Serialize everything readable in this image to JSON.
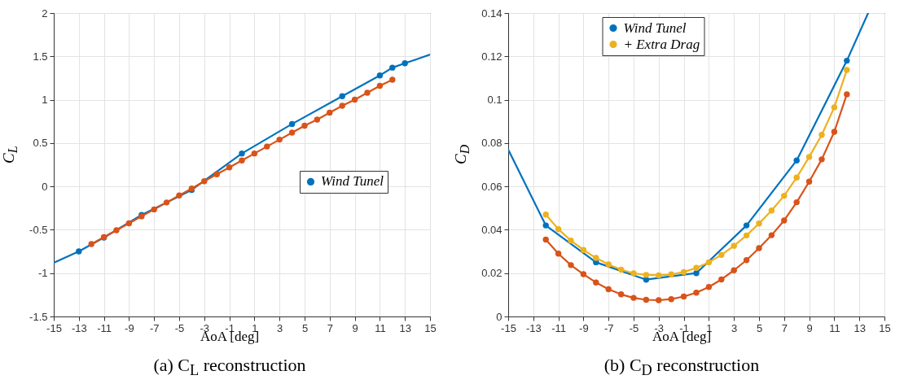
{
  "chart_data": [
    {
      "type": "line",
      "title": "(a) C$_{L}$ reconstruction",
      "xlabel": "AoA [deg]",
      "ylabel": "C$_{L}$",
      "xlim": [
        -15,
        15
      ],
      "xticks": [
        -15,
        -13,
        -11,
        -9,
        -7,
        -5,
        -3,
        -1,
        1,
        3,
        5,
        7,
        9,
        11,
        13,
        15
      ],
      "ylim": [
        -1.5,
        2
      ],
      "yticks": [
        -1.5,
        -1,
        -0.5,
        0,
        0.5,
        1,
        1.5,
        2
      ],
      "grid": true,
      "legend": "right",
      "marker": "circle",
      "line_style": "solid",
      "series": [
        {
          "name": "Wind Tunel",
          "color": "#0072bd",
          "x": [
            -13,
            -11,
            -8,
            -4,
            0,
            4,
            8,
            11,
            12,
            13
          ],
          "values": [
            -0.75,
            -0.59,
            -0.33,
            -0.04,
            0.38,
            0.72,
            1.04,
            1.28,
            1.37,
            1.42
          ]
        },
        {
          "color": "#d95319",
          "x": [
            -12,
            -11,
            -10,
            -9,
            -8,
            -7,
            -6,
            -5,
            -4,
            -3,
            -2,
            -1,
            0,
            1,
            2,
            3,
            4,
            5,
            6,
            7,
            8,
            9,
            10,
            11,
            12
          ],
          "values": [
            -0.665,
            -0.585,
            -0.505,
            -0.425,
            -0.345,
            -0.265,
            -0.185,
            -0.105,
            -0.025,
            0.06,
            0.14,
            0.22,
            0.3,
            0.38,
            0.46,
            0.54,
            0.62,
            0.7,
            0.77,
            0.85,
            0.93,
            1.0,
            1.08,
            1.16,
            1.23
          ]
        },
        {
          "type": "line",
          "marker": "none",
          "color": "#0072bd",
          "x": [
            -15,
            -13
          ],
          "values": [
            -0.88,
            -0.75
          ]
        },
        {
          "type": "line",
          "marker": "none",
          "color": "#0072bd",
          "x": [
            13,
            14,
            15
          ],
          "values": [
            1.42,
            1.47,
            1.52
          ]
        }
      ]
    },
    {
      "type": "line",
      "title": "(b) C$_{D}$ reconstruction",
      "xlabel": "AoA [deg]",
      "ylabel": "C$_{D}$",
      "xlim": [
        -15,
        15
      ],
      "xticks": [
        -15,
        -13,
        -11,
        -9,
        -7,
        -5,
        -3,
        -1,
        1,
        3,
        5,
        7,
        9,
        11,
        13,
        15
      ],
      "ylim": [
        0,
        0.14
      ],
      "yticks": [
        0,
        0.02,
        0.04,
        0.06,
        0.08,
        0.1,
        0.12,
        0.14
      ],
      "grid": true,
      "legend": "top",
      "marker": "circle",
      "line_style": "solid",
      "series": [
        {
          "name": "Wind Tunel",
          "color": "#0072bd",
          "x": [
            -12,
            -8,
            -4,
            0,
            4,
            8,
            12
          ],
          "values": [
            0.042,
            0.025,
            0.017,
            0.02,
            0.042,
            0.072,
            0.118
          ]
        },
        {
          "color": "#d95319",
          "x": [
            -12,
            -11,
            -10,
            -9,
            -8,
            -7,
            -6,
            -5,
            -4,
            -3,
            -2,
            -1,
            0,
            1,
            2,
            3,
            4,
            5,
            6,
            7,
            8,
            9,
            10,
            11,
            12
          ],
          "values": [
            0.0355,
            0.029,
            0.0237,
            0.0195,
            0.0157,
            0.0126,
            0.0102,
            0.0086,
            0.0077,
            0.0075,
            0.008,
            0.0092,
            0.011,
            0.0136,
            0.0171,
            0.0213,
            0.026,
            0.0315,
            0.0375,
            0.0443,
            0.0527,
            0.0622,
            0.0725,
            0.0852,
            0.1025
          ]
        },
        {
          "name": "+ Extra Drag",
          "color": "#edb120",
          "x": [
            -12,
            -11,
            -10,
            -9,
            -8,
            -7,
            -6,
            -5,
            -4,
            -3,
            -2,
            -1,
            0,
            1,
            2,
            3,
            4,
            5,
            6,
            7,
            8,
            9,
            10,
            11,
            12
          ],
          "values": [
            0.047,
            0.0403,
            0.035,
            0.0307,
            0.027,
            0.024,
            0.0216,
            0.0199,
            0.0192,
            0.019,
            0.0194,
            0.0205,
            0.0224,
            0.025,
            0.0284,
            0.0326,
            0.0374,
            0.0429,
            0.0489,
            0.0557,
            0.0641,
            0.0736,
            0.0838,
            0.0965,
            0.1137
          ]
        },
        {
          "type": "line",
          "marker": "none",
          "color": "#0072bd",
          "x": [
            -15,
            -12
          ],
          "values": [
            0.077,
            0.042
          ]
        },
        {
          "type": "line",
          "marker": "none",
          "color": "#0072bd",
          "x": [
            12,
            13.7
          ],
          "values": [
            0.118,
            0.14
          ]
        }
      ]
    }
  ]
}
